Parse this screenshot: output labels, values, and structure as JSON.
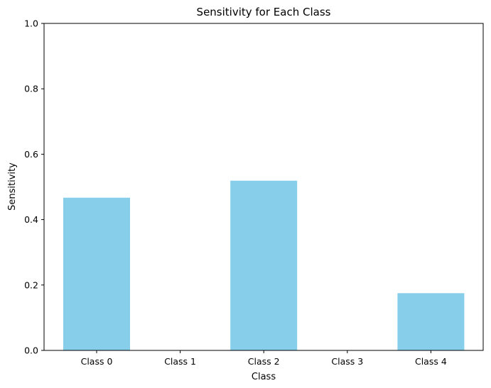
{
  "chart_data": {
    "type": "bar",
    "title": "Sensitivity for Each Class",
    "xlabel": "Class",
    "ylabel": "Sensitivity",
    "categories": [
      "Class 0",
      "Class 1",
      "Class 2",
      "Class 3",
      "Class 4"
    ],
    "values": [
      0.467,
      0.0,
      0.519,
      0.0,
      0.175
    ],
    "ylim": [
      0,
      1
    ],
    "yticks": [
      "0.0",
      "0.2",
      "0.4",
      "0.6",
      "0.8",
      "1.0"
    ],
    "bar_color": "#87ceeb",
    "grid": false,
    "legend": "none"
  }
}
